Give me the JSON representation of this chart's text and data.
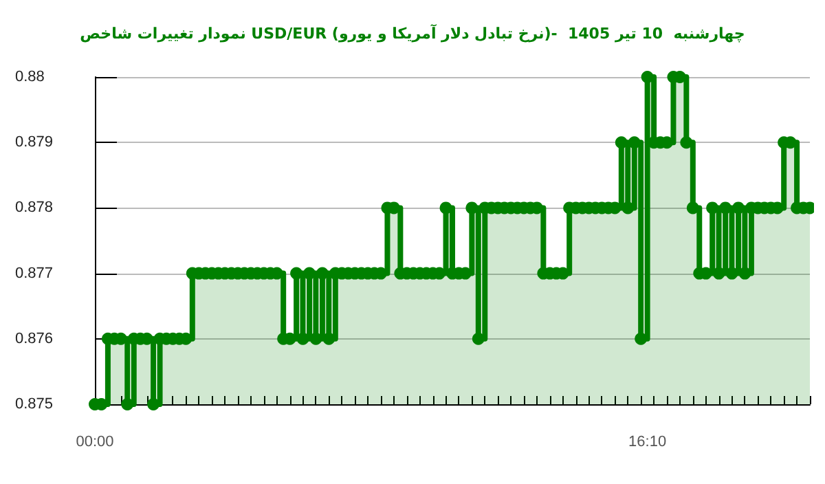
{
  "chart_data": {
    "type": "step",
    "title": "نمودار تغییرات شاخص USD/EUR (نرخ تبادل دلار آمریکا و یورو)-  چهارشنبه  10 تیر 1405",
    "categories": [
      "00:00",
      null,
      null,
      null,
      null,
      null,
      null,
      null,
      null,
      null,
      null,
      null,
      null,
      null,
      null,
      null,
      null,
      null,
      null,
      null,
      null,
      null,
      null,
      null,
      null,
      null,
      null,
      null,
      null,
      null,
      null,
      null,
      null,
      null,
      null,
      null,
      null,
      null,
      null,
      null,
      null,
      null,
      null,
      null,
      null,
      null,
      null,
      null,
      null,
      null,
      null,
      null,
      null,
      null,
      null,
      null,
      null,
      null,
      null,
      null,
      null,
      null,
      null,
      null,
      null,
      null,
      null,
      null,
      null,
      null,
      null,
      null,
      null,
      null,
      null,
      null,
      null,
      null,
      null,
      null,
      null,
      null,
      null,
      null,
      null,
      "16:10",
      null,
      null,
      null,
      null,
      null,
      null,
      null,
      null,
      null,
      null,
      null,
      null,
      null,
      null,
      null,
      null,
      null,
      null,
      null,
      null,
      null,
      null,
      null,
      null,
      null
    ],
    "series": [
      {
        "color": "#008000",
        "values": [
          0.875,
          0.875,
          0.876,
          0.876,
          0.876,
          0.875,
          0.876,
          0.876,
          0.876,
          0.875,
          0.876,
          0.876,
          0.876,
          0.876,
          0.876,
          0.877,
          0.877,
          0.877,
          0.877,
          0.877,
          0.877,
          0.877,
          0.877,
          0.877,
          0.877,
          0.877,
          0.877,
          0.877,
          0.877,
          0.876,
          0.876,
          0.877,
          0.876,
          0.877,
          0.876,
          0.877,
          0.876,
          0.877,
          0.877,
          0.877,
          0.877,
          0.877,
          0.877,
          0.877,
          0.877,
          0.878,
          0.878,
          0.877,
          0.877,
          0.877,
          0.877,
          0.877,
          0.877,
          0.877,
          0.878,
          0.877,
          0.877,
          0.877,
          0.878,
          0.876,
          0.878,
          0.878,
          0.878,
          0.878,
          0.878,
          0.878,
          0.878,
          0.878,
          0.878,
          0.877,
          0.877,
          0.877,
          0.877,
          0.878,
          0.878,
          0.878,
          0.878,
          0.878,
          0.878,
          0.878,
          0.878,
          0.879,
          0.878,
          0.879,
          0.876,
          0.88,
          0.879,
          0.879,
          0.879,
          0.88,
          0.88,
          0.879,
          0.878,
          0.877,
          0.877,
          0.878,
          0.877,
          0.878,
          0.877,
          0.878,
          0.877,
          0.878,
          0.878,
          0.878,
          0.878,
          0.878,
          0.879,
          0.879,
          0.878,
          0.878,
          0.878
        ]
      }
    ],
    "ylim": [
      0.875,
      0.88
    ],
    "yticks": [
      0.875,
      0.876,
      0.877,
      0.878,
      0.879,
      0.88
    ],
    "grid": "y",
    "marker": "circle"
  }
}
